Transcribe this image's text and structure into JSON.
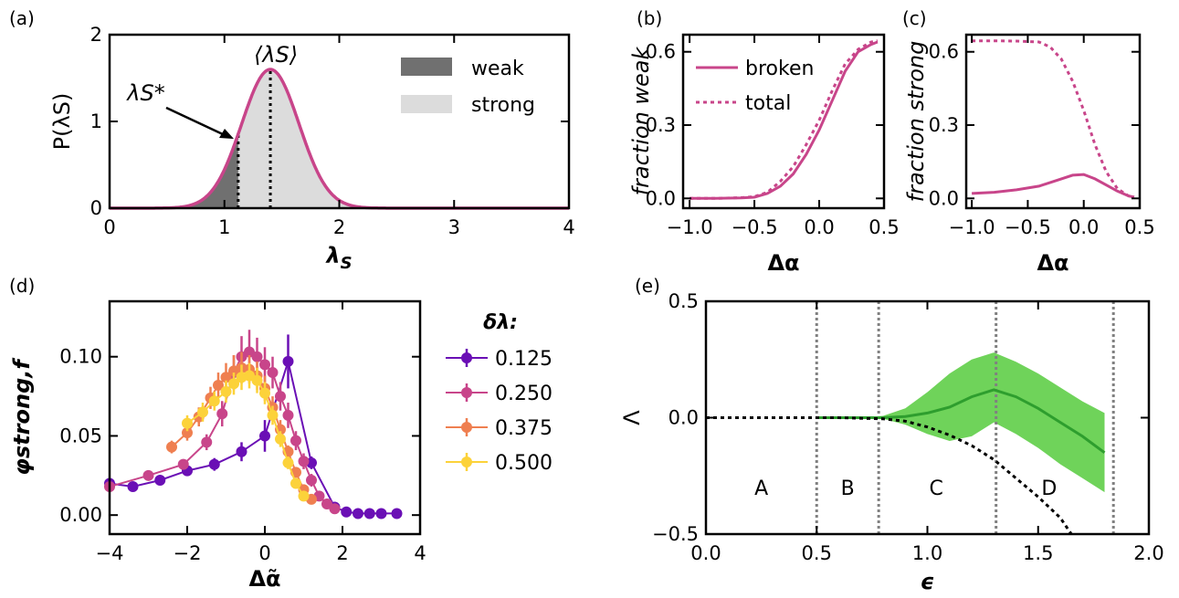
{
  "panels": {
    "a": {
      "label": "(a)"
    },
    "b": {
      "label": "(b)"
    },
    "c": {
      "label": "(c)"
    },
    "d": {
      "label": "(d)"
    },
    "e": {
      "label": "(e)"
    }
  },
  "chart_data": [
    {
      "id": "a",
      "type": "area",
      "xlabel": "λS",
      "ylabel": "P(λS)",
      "xlim": [
        0,
        4
      ],
      "ylim": [
        0,
        2
      ],
      "xticks": [
        "0",
        "1",
        "2",
        "3",
        "4"
      ],
      "yticks": [
        "0",
        "1",
        "2"
      ],
      "distribution": {
        "shape": "gaussian",
        "mean": 1.4,
        "sd": 0.25,
        "peak": 1.6
      },
      "threshold": 1.12,
      "mean_marker": 1.4,
      "annotations": {
        "mean": "⟨λS⟩",
        "threshold": "λS*"
      },
      "legend": [
        "weak",
        "strong"
      ],
      "legend_position": "top-right",
      "colors": {
        "curve": "#c8458a",
        "weak": "#707070",
        "strong": "#dcdcdc"
      }
    },
    {
      "id": "b",
      "type": "line",
      "xlabel": "Δα",
      "ylabel": "fraction weak",
      "xlim": [
        -1.05,
        0.5
      ],
      "ylim": [
        -0.04,
        0.67
      ],
      "xticks": [
        "−1.0",
        "−0.5",
        "0.0",
        "0.5"
      ],
      "yticks": [
        "0.0",
        "0.3",
        "0.6"
      ],
      "series": [
        {
          "name": "broken",
          "style": "solid",
          "x": [
            -1.0,
            -0.8,
            -0.6,
            -0.5,
            -0.4,
            -0.3,
            -0.2,
            -0.1,
            0.0,
            0.1,
            0.2,
            0.3,
            0.4,
            0.45
          ],
          "y": [
            0.0,
            0.0,
            0.002,
            0.005,
            0.02,
            0.05,
            0.1,
            0.18,
            0.28,
            0.4,
            0.52,
            0.6,
            0.63,
            0.64
          ]
        },
        {
          "name": "total",
          "style": "dashed",
          "x": [
            -1.0,
            -0.8,
            -0.6,
            -0.5,
            -0.4,
            -0.3,
            -0.2,
            -0.1,
            0.0,
            0.1,
            0.2,
            0.3,
            0.4,
            0.45
          ],
          "y": [
            0.0,
            0.0,
            0.003,
            0.007,
            0.025,
            0.07,
            0.13,
            0.22,
            0.32,
            0.44,
            0.55,
            0.61,
            0.64,
            0.645
          ]
        }
      ],
      "legend_position": "top-left",
      "color": "#c8458a"
    },
    {
      "id": "c",
      "type": "line",
      "xlabel": "Δα",
      "ylabel": "fraction strong",
      "xlim": [
        -1.05,
        0.5
      ],
      "ylim": [
        -0.04,
        0.67
      ],
      "xticks": [
        "−1.0",
        "−0.5",
        "0.0",
        "0.5"
      ],
      "yticks": [
        "0.0",
        "0.3",
        "0.6"
      ],
      "series": [
        {
          "style": "solid",
          "x": [
            -1.0,
            -0.8,
            -0.6,
            -0.4,
            -0.2,
            -0.1,
            0.0,
            0.1,
            0.2,
            0.3,
            0.4,
            0.45
          ],
          "y": [
            0.02,
            0.025,
            0.035,
            0.05,
            0.08,
            0.095,
            0.098,
            0.08,
            0.055,
            0.03,
            0.01,
            0.005
          ]
        },
        {
          "style": "dashed",
          "x": [
            -1.0,
            -0.8,
            -0.6,
            -0.4,
            -0.3,
            -0.2,
            -0.1,
            0.0,
            0.1,
            0.2,
            0.3,
            0.4,
            0.45
          ],
          "y": [
            0.645,
            0.645,
            0.644,
            0.64,
            0.62,
            0.57,
            0.48,
            0.36,
            0.22,
            0.11,
            0.04,
            0.01,
            0.005
          ]
        }
      ],
      "color": "#c8458a"
    },
    {
      "id": "d",
      "type": "scatter",
      "xlabel": "Δα̃",
      "ylabel": "φstrong,f",
      "xlim": [
        -4,
        4
      ],
      "ylim": [
        -0.012,
        0.135
      ],
      "xticks": [
        "−4",
        "−2",
        "0",
        "2",
        "4"
      ],
      "yticks": [
        "0.00",
        "0.05",
        "0.10"
      ],
      "legend_title": "δλ:",
      "legend_position": "outside-right",
      "series": [
        {
          "name": "0.125",
          "color": "#6a0fb5",
          "x": [
            -4.0,
            -3.4,
            -2.7,
            -2.0,
            -1.3,
            -0.6,
            0.0,
            0.6,
            1.2,
            1.8,
            2.1,
            2.4,
            2.7,
            3.0,
            3.4
          ],
          "y": [
            0.02,
            0.018,
            0.022,
            0.028,
            0.032,
            0.04,
            0.05,
            0.097,
            0.033,
            0.005,
            0.002,
            0.001,
            0.001,
            0.001,
            0.001
          ],
          "err": [
            0.002,
            0.002,
            0.003,
            0.003,
            0.004,
            0.006,
            0.01,
            0.017,
            0.004,
            0.001,
            0.0,
            0.0,
            0.0,
            0.0,
            0.0
          ]
        },
        {
          "name": "0.250",
          "color": "#c8458a",
          "x": [
            -4.0,
            -3.0,
            -2.1,
            -1.5,
            -1.1,
            -0.8,
            -0.6,
            -0.4,
            -0.2,
            0.0,
            0.2,
            0.4,
            0.6,
            0.8,
            1.0,
            1.2,
            1.4,
            1.6,
            1.8
          ],
          "y": [
            0.018,
            0.025,
            0.032,
            0.046,
            0.064,
            0.09,
            0.1,
            0.103,
            0.1,
            0.095,
            0.09,
            0.075,
            0.063,
            0.047,
            0.034,
            0.022,
            0.012,
            0.007,
            0.004
          ],
          "err": [
            0.002,
            0.002,
            0.003,
            0.005,
            0.008,
            0.011,
            0.013,
            0.014,
            0.012,
            0.011,
            0.01,
            0.009,
            0.008,
            0.006,
            0.005,
            0.004,
            0.002,
            0.001,
            0.001
          ]
        },
        {
          "name": "0.375",
          "color": "#ef7f50",
          "x": [
            -2.4,
            -2.0,
            -1.7,
            -1.4,
            -1.2,
            -1.0,
            -0.8,
            -0.6,
            -0.4,
            -0.2,
            0.0,
            0.2,
            0.4,
            0.6,
            0.8,
            1.0,
            1.2
          ],
          "y": [
            0.043,
            0.052,
            0.062,
            0.074,
            0.082,
            0.087,
            0.091,
            0.093,
            0.092,
            0.088,
            0.08,
            0.068,
            0.054,
            0.04,
            0.027,
            0.016,
            0.01
          ],
          "err": [
            0.004,
            0.005,
            0.006,
            0.007,
            0.008,
            0.009,
            0.01,
            0.01,
            0.009,
            0.009,
            0.008,
            0.007,
            0.006,
            0.004,
            0.003,
            0.002,
            0.001
          ]
        },
        {
          "name": "0.500",
          "color": "#fcd23a",
          "x": [
            -2.0,
            -1.6,
            -1.3,
            -1.0,
            -0.8,
            -0.6,
            -0.4,
            -0.2,
            0.0,
            0.2,
            0.4,
            0.6,
            0.8,
            1.0
          ],
          "y": [
            0.058,
            0.065,
            0.072,
            0.078,
            0.083,
            0.087,
            0.088,
            0.085,
            0.077,
            0.063,
            0.048,
            0.033,
            0.02,
            0.012
          ],
          "err": [
            0.005,
            0.006,
            0.006,
            0.007,
            0.007,
            0.008,
            0.008,
            0.008,
            0.007,
            0.006,
            0.005,
            0.004,
            0.003,
            0.002
          ]
        }
      ]
    },
    {
      "id": "e",
      "type": "line",
      "xlabel": "ϵ",
      "ylabel": "Λ",
      "xlim": [
        0.0,
        2.0
      ],
      "ylim": [
        -0.5,
        0.5
      ],
      "xticks": [
        "0.0",
        "0.5",
        "1.0",
        "1.5",
        "2.0"
      ],
      "yticks": [
        "−0.5",
        "0.0",
        "0.5"
      ],
      "series": [
        {
          "style": "solid",
          "color": "#2e9e2e",
          "x": [
            0.5,
            0.6,
            0.7,
            0.8,
            0.9,
            1.0,
            1.1,
            1.2,
            1.3,
            1.4,
            1.5,
            1.6,
            1.7,
            1.8
          ],
          "y": [
            0.0,
            0.0,
            0.0,
            0.0,
            0.005,
            0.02,
            0.045,
            0.09,
            0.12,
            0.09,
            0.04,
            -0.02,
            -0.08,
            -0.15
          ],
          "band_low": [
            0.0,
            0.0,
            0.0,
            -0.005,
            -0.03,
            -0.07,
            -0.1,
            -0.08,
            -0.02,
            -0.07,
            -0.13,
            -0.2,
            -0.26,
            -0.32
          ],
          "band_high": [
            0.0,
            0.0,
            0.0,
            0.008,
            0.04,
            0.11,
            0.19,
            0.25,
            0.28,
            0.24,
            0.19,
            0.13,
            0.07,
            0.02
          ]
        },
        {
          "style": "dashed",
          "color": "#000000",
          "x": [
            0.0,
            0.2,
            0.4,
            0.6,
            0.8,
            0.9,
            1.0,
            1.1,
            1.2,
            1.3,
            1.4,
            1.5,
            1.6,
            1.65
          ],
          "y": [
            0.0,
            0.0,
            0.0,
            0.0,
            -0.005,
            -0.015,
            -0.04,
            -0.075,
            -0.12,
            -0.18,
            -0.26,
            -0.34,
            -0.43,
            -0.5
          ]
        }
      ],
      "vlines": [
        0.5,
        0.78,
        1.31,
        1.84
      ],
      "regions": [
        {
          "label": "A",
          "x": 0.25,
          "y": -0.3
        },
        {
          "label": "B",
          "x": 0.64,
          "y": -0.3
        },
        {
          "label": "C",
          "x": 1.04,
          "y": -0.3
        },
        {
          "label": "D",
          "x": 1.55,
          "y": -0.3
        }
      ],
      "band_color": "#6fd35a"
    }
  ]
}
